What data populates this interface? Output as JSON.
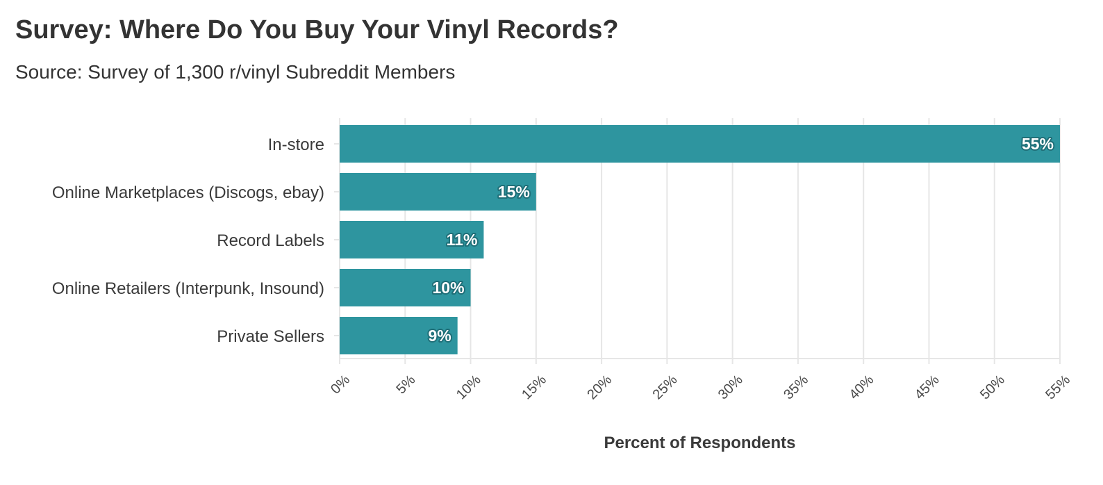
{
  "title": "Survey: Where Do You Buy Your Vinyl Records?",
  "subtitle": "Source: Survey of 1,300 r/vinyl Subreddit Members",
  "colors": {
    "bar": "#2e959f",
    "grid": "#e6e6e6",
    "label_outline": "#1f6f78"
  },
  "chart_data": {
    "type": "bar",
    "orientation": "horizontal",
    "categories": [
      "In-store",
      "Online Marketplaces (Discogs, ebay)",
      "Record Labels",
      "Online Retailers (Interpunk, Insound)",
      "Private Sellers"
    ],
    "values": [
      55,
      15,
      11,
      10,
      9
    ],
    "value_labels": [
      "55%",
      "15%",
      "11%",
      "10%",
      "9%"
    ],
    "xlabel": "Percent of Respondents",
    "ylabel": "",
    "xlim": [
      0,
      55
    ],
    "xticks": [
      0,
      5,
      10,
      15,
      20,
      25,
      30,
      35,
      40,
      45,
      50,
      55
    ],
    "xtick_labels": [
      "0%",
      "5%",
      "10%",
      "15%",
      "20%",
      "25%",
      "30%",
      "35%",
      "40%",
      "45%",
      "50%",
      "55%"
    ],
    "grid": true,
    "legend": "none"
  }
}
